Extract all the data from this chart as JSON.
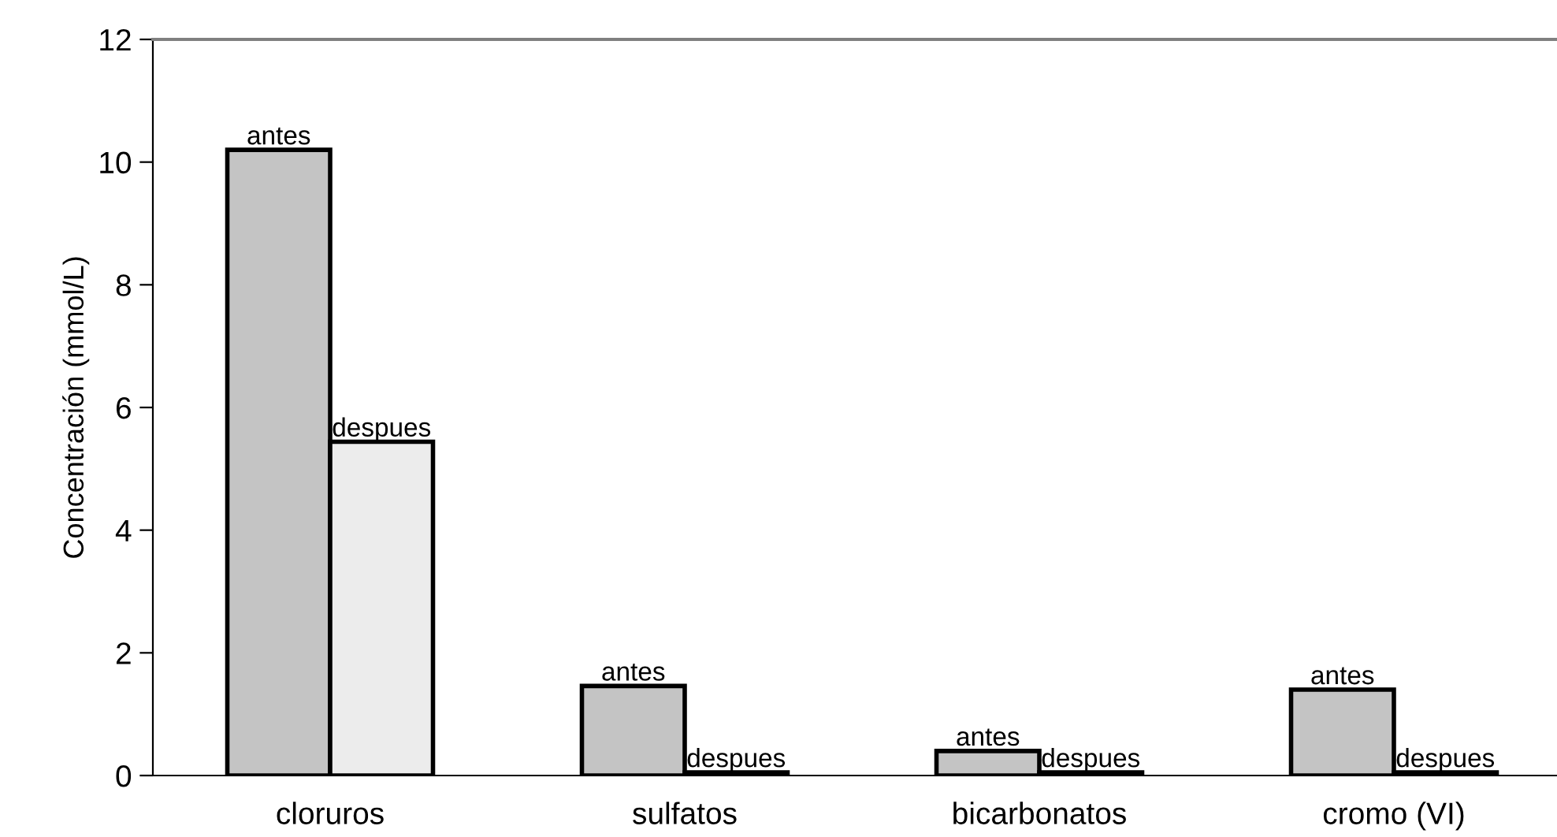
{
  "chart_data": {
    "type": "bar",
    "ylabel": "Concentración (mmol/L)",
    "categories": [
      "cloruros",
      "sulfatos",
      "bicarbonatos",
      "cromo (VI)"
    ],
    "series": [
      {
        "name": "antes",
        "color": "#c4c4c4",
        "values": [
          10.2,
          1.46,
          0.4,
          1.4
        ]
      },
      {
        "name": "despues",
        "color": "#ececec",
        "values": [
          5.44,
          0.05,
          0.05,
          0.05
        ]
      }
    ],
    "ylim": [
      0,
      12
    ],
    "yticks": [
      0,
      2,
      4,
      6,
      8,
      10,
      12
    ],
    "grid": false,
    "legend": false
  }
}
